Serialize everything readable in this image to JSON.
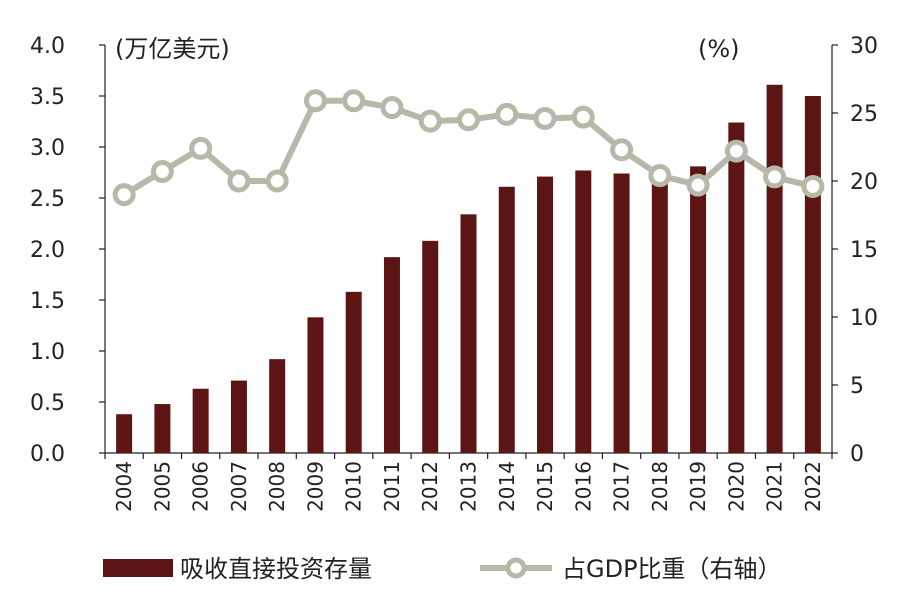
{
  "chart_data": {
    "type": "bar+line",
    "categories": [
      "2004",
      "2005",
      "2006",
      "2007",
      "2008",
      "2009",
      "2010",
      "2011",
      "2012",
      "2013",
      "2014",
      "2015",
      "2016",
      "2017",
      "2018",
      "2019",
      "2020",
      "2021",
      "2022"
    ],
    "series": [
      {
        "name": "吸收直接投资存量",
        "type": "bar",
        "axis": "left",
        "color": "#5c1414",
        "values": [
          0.38,
          0.48,
          0.63,
          0.71,
          0.92,
          1.33,
          1.58,
          1.92,
          2.08,
          2.34,
          2.61,
          2.71,
          2.77,
          2.74,
          2.68,
          2.81,
          3.24,
          3.61,
          3.5
        ]
      },
      {
        "name": "占GDP比重（右轴）",
        "type": "line",
        "axis": "right",
        "color": "#b8b8aa",
        "values": [
          19.0,
          20.7,
          22.4,
          20.0,
          20.0,
          25.9,
          25.9,
          25.4,
          24.4,
          24.5,
          24.9,
          24.6,
          24.7,
          22.3,
          20.4,
          19.7,
          22.2,
          20.3,
          19.6
        ]
      }
    ],
    "ylim_left": [
      0,
      4.0
    ],
    "yticks_left": [
      "0.0",
      "0.5",
      "1.0",
      "1.5",
      "2.0",
      "2.5",
      "3.0",
      "3.5",
      "4.0"
    ],
    "ylim_right": [
      0,
      30
    ],
    "yticks_right": [
      "0",
      "5",
      "10",
      "15",
      "20",
      "25",
      "30"
    ],
    "left_unit": "(万亿美元)",
    "right_unit": "(%)",
    "legend_position": "bottom",
    "grid": false
  }
}
